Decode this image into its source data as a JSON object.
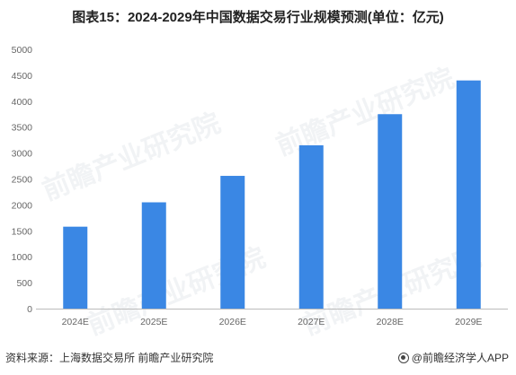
{
  "title": "图表15：2024-2029年中国数据交易行业规模预测(单位：亿元)",
  "source": "资料来源：上海数据交易所 前瞻产业研究院",
  "brand": "@前瞻经济学人APP",
  "watermark": "前瞻产业研究院",
  "colors": {
    "bar": "#3a87e4",
    "axis": "#bbbbbb",
    "tick_text": "#666666"
  },
  "chart_data": {
    "type": "bar",
    "title": "图表15：2024-2029年中国数据交易行业规模预测(单位：亿元)",
    "categories": [
      "2024E",
      "2025E",
      "2026E",
      "2027E",
      "2028E",
      "2029E"
    ],
    "values": [
      1580,
      2050,
      2560,
      3150,
      3750,
      4400
    ],
    "ylim": [
      0,
      5000
    ],
    "yticks": [
      0,
      500,
      1000,
      1500,
      2000,
      2500,
      3000,
      3500,
      4000,
      4500,
      5000
    ],
    "xlabel": "",
    "ylabel": "",
    "grid": false,
    "legend": "none"
  }
}
